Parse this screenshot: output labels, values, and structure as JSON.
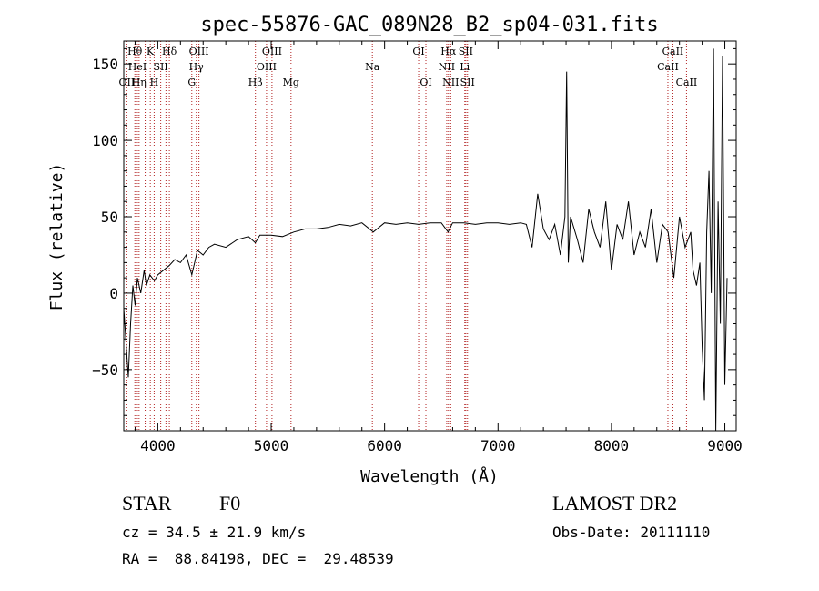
{
  "chart_data": {
    "type": "line",
    "title": "spec-55876-GAC_089N28_B2_sp04-031.fits",
    "xlabel": "Wavelength (Å)",
    "ylabel": "Flux (relative)",
    "xlim": [
      3700,
      9100
    ],
    "ylim": [
      -90,
      165
    ],
    "xticks": [
      4000,
      5000,
      6000,
      7000,
      8000,
      9000
    ],
    "yticks": [
      -50,
      0,
      50,
      100,
      150
    ],
    "xtick_labels": [
      "4000",
      "5000",
      "6000",
      "7000",
      "8000",
      "9000"
    ],
    "ytick_labels": [
      "−50",
      "0",
      "50",
      "100",
      "150"
    ],
    "grid": false,
    "line_color": "#000000",
    "marker_color": "#b22222",
    "series": [
      {
        "x": [
          3700,
          3740,
          3760,
          3780,
          3800,
          3820,
          3850,
          3880,
          3900,
          3930,
          3970,
          4000,
          4050,
          4100,
          4150,
          4200,
          4250,
          4300,
          4350,
          4400,
          4450,
          4500,
          4600,
          4700,
          4800,
          4860,
          4900,
          5000,
          5100,
          5200,
          5300,
          5400,
          5500,
          5600,
          5700,
          5800,
          5900,
          6000,
          6100,
          6200,
          6300,
          6400,
          6500,
          6560,
          6600,
          6700,
          6800,
          6900,
          7000,
          7100,
          7200,
          7250,
          7300,
          7350,
          7400,
          7450,
          7500,
          7550,
          7590,
          7605,
          7620,
          7640,
          7700,
          7750,
          7800,
          7850,
          7900,
          7950,
          8000,
          8050,
          8100,
          8150,
          8200,
          8250,
          8300,
          8350,
          8400,
          8450,
          8500,
          8550,
          8600,
          8650,
          8700,
          8720,
          8750,
          8780,
          8800,
          8820,
          8840,
          8860,
          8880,
          8900,
          8920,
          8940,
          8960,
          8980,
          9000,
          9020
        ],
        "y": [
          -10,
          -55,
          -20,
          5,
          -8,
          10,
          0,
          15,
          5,
          12,
          8,
          12,
          15,
          18,
          22,
          20,
          25,
          12,
          28,
          25,
          30,
          32,
          30,
          35,
          37,
          33,
          38,
          38,
          37,
          40,
          42,
          42,
          43,
          45,
          44,
          46,
          40,
          46,
          45,
          46,
          45,
          46,
          46,
          40,
          46,
          46,
          45,
          46,
          46,
          45,
          46,
          45,
          30,
          65,
          42,
          35,
          45,
          25,
          50,
          145,
          20,
          50,
          35,
          20,
          55,
          40,
          30,
          60,
          15,
          45,
          35,
          60,
          25,
          40,
          30,
          55,
          20,
          45,
          40,
          10,
          50,
          30,
          40,
          15,
          5,
          20,
          -35,
          -70,
          40,
          80,
          0,
          160,
          -90,
          60,
          -20,
          155,
          -60,
          10
        ]
      }
    ],
    "line_markers": [
      {
        "wave": 3727,
        "label": "OII",
        "row": 3
      },
      {
        "wave": 3798,
        "label": "Hθ",
        "row": 1
      },
      {
        "wave": 3820,
        "label": "HeI",
        "row": 2
      },
      {
        "wave": 3835,
        "label": "Hη",
        "row": 3
      },
      {
        "wave": 3889,
        "label": "",
        "row": 0
      },
      {
        "wave": 3934,
        "label": "K",
        "row": 1
      },
      {
        "wave": 3968,
        "label": "H",
        "row": 3
      },
      {
        "wave": 4026,
        "label": "SII",
        "row": 2
      },
      {
        "wave": 4072,
        "label": "",
        "row": 0
      },
      {
        "wave": 4102,
        "label": "Hδ",
        "row": 1
      },
      {
        "wave": 4300,
        "label": "G",
        "row": 3
      },
      {
        "wave": 4340,
        "label": "Hγ",
        "row": 2
      },
      {
        "wave": 4363,
        "label": "OIII",
        "row": 1
      },
      {
        "wave": 4861,
        "label": "Hβ",
        "row": 3
      },
      {
        "wave": 4959,
        "label": "OIII",
        "row": 2
      },
      {
        "wave": 5007,
        "label": "OIII",
        "row": 1
      },
      {
        "wave": 5175,
        "label": "Mg",
        "row": 3
      },
      {
        "wave": 5892,
        "label": "Na",
        "row": 2
      },
      {
        "wave": 6300,
        "label": "OI",
        "row": 1
      },
      {
        "wave": 6364,
        "label": "OI",
        "row": 3
      },
      {
        "wave": 6548,
        "label": "NII",
        "row": 2
      },
      {
        "wave": 6563,
        "label": "Hα",
        "row": 1
      },
      {
        "wave": 6583,
        "label": "NII",
        "row": 3
      },
      {
        "wave": 6707,
        "label": "Li",
        "row": 2
      },
      {
        "wave": 6716,
        "label": "SII",
        "row": 1
      },
      {
        "wave": 6731,
        "label": "SII",
        "row": 3
      },
      {
        "wave": 8498,
        "label": "CaII",
        "row": 2
      },
      {
        "wave": 8542,
        "label": "CaII",
        "row": 1
      },
      {
        "wave": 8662,
        "label": "CaII",
        "row": 3
      }
    ]
  },
  "info": {
    "class_label": "STAR",
    "subclass_label": "F0",
    "survey": "LAMOST DR2",
    "cz_text": "cz = 34.5 ± 21.9 km/s",
    "coords_text": "RA =  88.84198, DEC =  29.48539",
    "obs_date_text": "Obs-Date: 20111110"
  }
}
